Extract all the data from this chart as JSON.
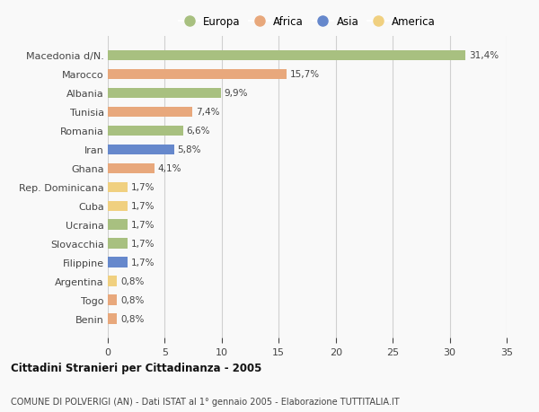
{
  "categories": [
    "Benin",
    "Togo",
    "Argentina",
    "Filippine",
    "Slovacchia",
    "Ucraina",
    "Cuba",
    "Rep. Dominicana",
    "Ghana",
    "Iran",
    "Romania",
    "Tunisia",
    "Albania",
    "Marocco",
    "Macedonia d/N."
  ],
  "values": [
    0.8,
    0.8,
    0.8,
    1.7,
    1.7,
    1.7,
    1.7,
    1.7,
    4.1,
    5.8,
    6.6,
    7.4,
    9.9,
    15.7,
    31.4
  ],
  "labels": [
    "0,8%",
    "0,8%",
    "0,8%",
    "1,7%",
    "1,7%",
    "1,7%",
    "1,7%",
    "1,7%",
    "4,1%",
    "5,8%",
    "6,6%",
    "7,4%",
    "9,9%",
    "15,7%",
    "31,4%"
  ],
  "colors": [
    "#e8a87c",
    "#e8a87c",
    "#f0d080",
    "#6688cc",
    "#a8c080",
    "#a8c080",
    "#f0d080",
    "#f0d080",
    "#e8a87c",
    "#6688cc",
    "#a8c080",
    "#e8a87c",
    "#a8c080",
    "#e8a87c",
    "#a8c080"
  ],
  "legend_labels": [
    "Europa",
    "Africa",
    "Asia",
    "America"
  ],
  "legend_colors": [
    "#a8c080",
    "#e8a87c",
    "#6688cc",
    "#f0d080"
  ],
  "title1": "Cittadini Stranieri per Cittadinanza - 2005",
  "title2": "COMUNE DI POLVERIGI (AN) - Dati ISTAT al 1° gennaio 2005 - Elaborazione TUTTITALIA.IT",
  "xlim": [
    0,
    35
  ],
  "xticks": [
    0,
    5,
    10,
    15,
    20,
    25,
    30,
    35
  ],
  "background_color": "#f9f9f9",
  "bar_height": 0.55,
  "grid_color": "#d0d0d0"
}
